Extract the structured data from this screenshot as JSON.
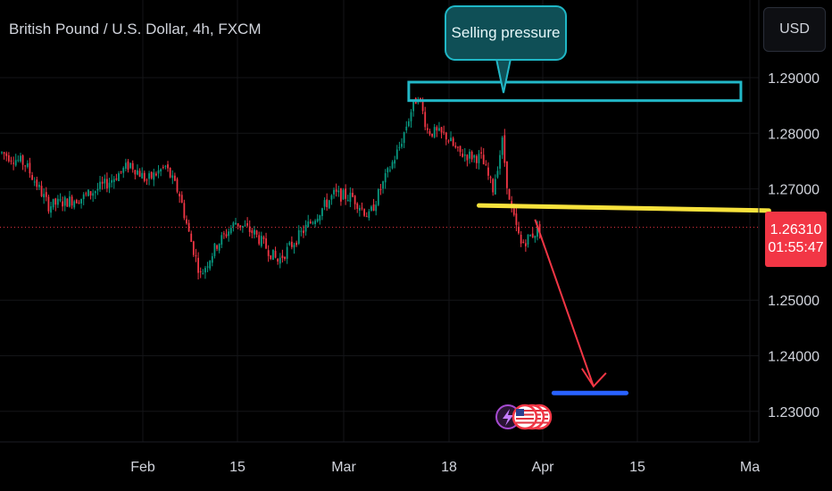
{
  "title": "British Pound / U.S. Dollar, 4h, FXCM",
  "currency_button": "USD",
  "annotation_text": "Selling pressure",
  "current_price": {
    "value": "1.26310",
    "countdown": "01:55:47"
  },
  "colors": {
    "background": "#000000",
    "up": "#089981",
    "down": "#f23645",
    "resistance_box": "#22b8c8",
    "support_line": "#f7e23c",
    "target_line": "#2962ff",
    "arrow": "#f23645"
  },
  "chart_data": {
    "type": "candlestick",
    "symbol": "GBPUSD",
    "timeframe": "4h",
    "y_ticks": [
      "1.29000",
      "1.28000",
      "1.27000",
      "1.25000",
      "1.24000",
      "1.23000"
    ],
    "x_ticks": [
      "Feb",
      "15",
      "Mar",
      "18",
      "Apr",
      "15",
      "Ma"
    ],
    "ylim": [
      1.2225,
      1.2925
    ],
    "path_anchors": [
      [
        0,
        1.2765
      ],
      [
        10,
        1.2745
      ],
      [
        20,
        1.267
      ],
      [
        35,
        1.2685
      ],
      [
        45,
        1.271
      ],
      [
        55,
        1.2745
      ],
      [
        62,
        1.2715
      ],
      [
        70,
        1.274
      ],
      [
        76,
        1.269
      ],
      [
        80,
        1.262
      ],
      [
        85,
        1.2545
      ],
      [
        92,
        1.26
      ],
      [
        100,
        1.264
      ],
      [
        108,
        1.262
      ],
      [
        118,
        1.257
      ],
      [
        128,
        1.262
      ],
      [
        135,
        1.2655
      ],
      [
        142,
        1.269
      ],
      [
        150,
        1.2685
      ],
      [
        157,
        1.265
      ],
      [
        162,
        1.27
      ],
      [
        170,
        1.2775
      ],
      [
        175,
        1.284
      ],
      [
        178,
        1.287
      ],
      [
        182,
        1.2805
      ],
      [
        190,
        1.2795
      ],
      [
        195,
        1.2765
      ],
      [
        205,
        1.2755
      ],
      [
        210,
        1.27
      ],
      [
        214,
        1.2785
      ],
      [
        217,
        1.2675
      ],
      [
        222,
        1.26
      ],
      [
        230,
        1.263
      ]
    ],
    "annotations": {
      "resistance_zone": {
        "from_index": 174,
        "to_index": 316,
        "price_low": 1.287,
        "price_high": 1.29
      },
      "support_line": {
        "from_index": 204,
        "to_index": 328,
        "price_start": 1.2667,
        "price_end": 1.2661
      },
      "projection_arrow": {
        "from_index": 228,
        "from_price": 1.2645,
        "to_index": 253,
        "to_price": 1.2345
      },
      "target_line": {
        "from_index": 236,
        "to_index": 267,
        "price": 1.2333
      }
    }
  }
}
